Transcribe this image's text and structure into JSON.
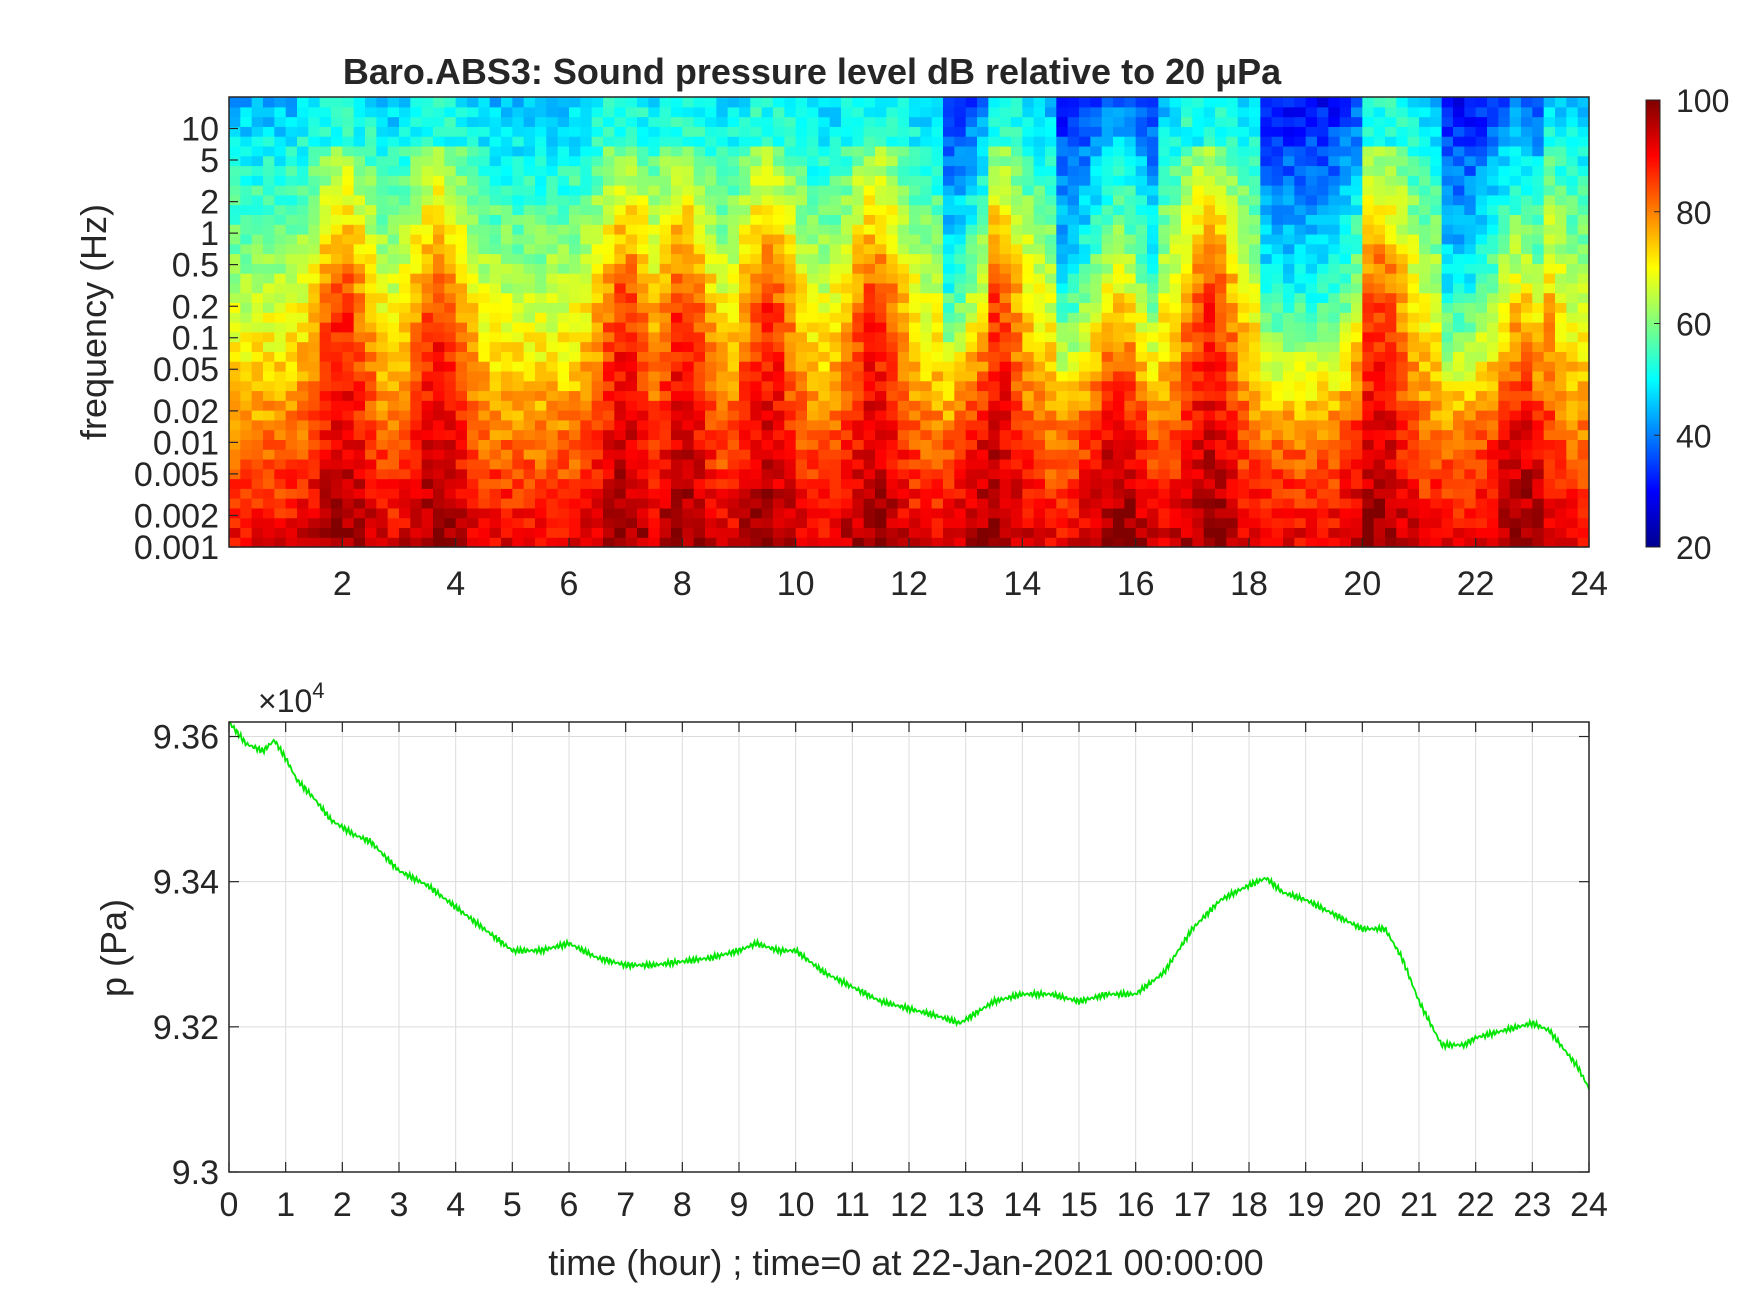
{
  "chart_data": [
    {
      "type": "heatmap",
      "title": "Baro.ABS3: Sound pressure level dB relative to 20 μPa",
      "xlabel": "",
      "ylabel": "frequency (Hz)",
      "xlim": [
        0,
        24
      ],
      "x_ticks": [
        "2",
        "4",
        "6",
        "8",
        "10",
        "12",
        "14",
        "16",
        "18",
        "20",
        "22",
        "24"
      ],
      "y_scale": "log",
      "ylim": [
        0.001,
        20
      ],
      "y_ticks": [
        "0.001",
        "0.002",
        "0.005",
        "0.01",
        "0.02",
        "0.05",
        "0.1",
        "0.2",
        "0.5",
        "1",
        "2",
        "5",
        "10"
      ],
      "colormap": "jet",
      "clim": [
        20,
        100
      ],
      "colorbar_ticks": [
        "20",
        "40",
        "60",
        "80",
        "100"
      ],
      "peak_hours": [
        2,
        3.7,
        7,
        8,
        9.5,
        11.4,
        13.5,
        15.7,
        17.3,
        20.3,
        22.8
      ],
      "colors": {
        "low": "#00008f",
        "mid": "#00ffff",
        "high": "#ffff00",
        "max": "#800000"
      }
    },
    {
      "type": "line",
      "title": "",
      "xlabel": "time (hour) ; time=0 at 22-Jan-2021 00:00:00",
      "ylabel": "p (Pa)",
      "exponent_label": "×10",
      "exponent_power": "4",
      "xlim": [
        0,
        24
      ],
      "ylim": [
        9.3,
        9.362
      ],
      "x_ticks": [
        "0",
        "1",
        "2",
        "3",
        "4",
        "5",
        "6",
        "7",
        "8",
        "9",
        "10",
        "11",
        "12",
        "13",
        "14",
        "15",
        "16",
        "17",
        "18",
        "19",
        "20",
        "21",
        "22",
        "23",
        "24"
      ],
      "y_ticks": [
        "9.3",
        "9.32",
        "9.34",
        "9.36"
      ],
      "grid": true,
      "color": "#00e600",
      "series": [
        {
          "name": "",
          "x": [
            0,
            0.3,
            0.6,
            0.8,
            1.0,
            1.2,
            1.5,
            1.8,
            2.2,
            2.5,
            3.0,
            3.5,
            4.0,
            4.5,
            5.0,
            5.5,
            6.0,
            6.5,
            7.0,
            7.5,
            8.0,
            8.5,
            9.0,
            9.3,
            9.7,
            10.0,
            10.5,
            11.0,
            11.5,
            12.0,
            12.5,
            12.9,
            13.3,
            13.5,
            14.0,
            14.5,
            15.0,
            15.5,
            16.0,
            16.5,
            17.0,
            17.5,
            18.0,
            18.3,
            18.6,
            19.0,
            19.5,
            20.0,
            20.4,
            20.7,
            21.0,
            21.4,
            21.8,
            22.0,
            22.5,
            23.0,
            23.3,
            23.6,
            23.8,
            24.0
          ],
          "y": [
            9.362,
            9.359,
            9.358,
            9.3595,
            9.357,
            9.354,
            9.3515,
            9.3485,
            9.3465,
            9.3455,
            9.3415,
            9.3395,
            9.3365,
            9.3335,
            9.3305,
            9.3305,
            9.3315,
            9.3295,
            9.3285,
            9.3285,
            9.329,
            9.3295,
            9.3305,
            9.3315,
            9.3305,
            9.3305,
            9.3275,
            9.3255,
            9.3235,
            9.3225,
            9.3215,
            9.3205,
            9.3225,
            9.3235,
            9.3245,
            9.3245,
            9.3235,
            9.3245,
            9.3245,
            9.3275,
            9.3335,
            9.3375,
            9.3395,
            9.3405,
            9.3385,
            9.3375,
            9.3355,
            9.3335,
            9.3335,
            9.3295,
            9.3235,
            9.3175,
            9.3175,
            9.3185,
            9.3195,
            9.3205,
            9.3195,
            9.3165,
            9.3145,
            9.3115
          ]
        }
      ]
    }
  ]
}
